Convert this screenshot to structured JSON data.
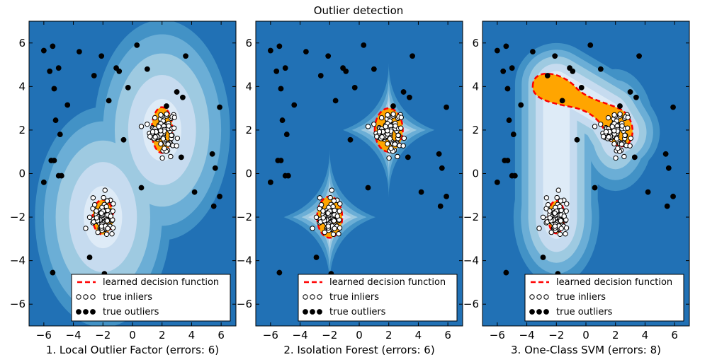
{
  "title": "Outlier detection",
  "colors": {
    "blues": [
      "#08306b",
      "#08519c",
      "#2171b5",
      "#4292c6",
      "#6baed6",
      "#9ecae1",
      "#c6dbef",
      "#deebf7",
      "#f7fbff"
    ],
    "decision_fill": "#ffa500",
    "decision_line": "#ff0000"
  },
  "chart_data": [
    {
      "type": "scatter",
      "xlabel": "1. Local Outlier Factor (errors: 6)",
      "xlim": [
        -7,
        7
      ],
      "ylim": [
        -7,
        7
      ],
      "xticks": [
        -6,
        -4,
        -2,
        0,
        2,
        4,
        6
      ],
      "yticks": [
        6,
        4,
        2,
        0,
        -2,
        -4,
        -6
      ],
      "legend": {
        "position": "lower-right",
        "entries": [
          "learned decision function",
          "true inliers",
          "true outliers"
        ]
      },
      "series": [
        {
          "name": "learned decision function",
          "shape": "blobs",
          "regions": [
            {
              "cx": 2.0,
              "cy": 2.0,
              "rx": 0.7,
              "ry": 1.05
            },
            {
              "cx": -2.0,
              "cy": -2.0,
              "rx": 0.7,
              "ry": 0.8
            }
          ]
        },
        {
          "name": "true inliers",
          "clusters": [
            {
              "cx": 2.0,
              "cy": 2.0,
              "sx": 0.4,
              "sy": 0.45,
              "n": 100
            },
            {
              "cx": -2.0,
              "cy": -2.0,
              "sx": 0.4,
              "sy": 0.4,
              "n": 100
            }
          ]
        },
        {
          "name": "true outliers",
          "points": [
            [
              -6.0,
              5.65
            ],
            [
              -5.4,
              5.85
            ],
            [
              -3.6,
              5.6
            ],
            [
              -2.1,
              5.4
            ],
            [
              0.3,
              5.9
            ],
            [
              3.6,
              5.4
            ],
            [
              -5.6,
              4.7
            ],
            [
              -5.0,
              4.85
            ],
            [
              -2.6,
              4.5
            ],
            [
              -1.1,
              4.85
            ],
            [
              -0.9,
              4.7
            ],
            [
              1.0,
              4.8
            ],
            [
              -5.3,
              3.9
            ],
            [
              -4.4,
              3.15
            ],
            [
              -1.6,
              3.35
            ],
            [
              -0.3,
              3.95
            ],
            [
              3.0,
              3.75
            ],
            [
              3.4,
              3.5
            ],
            [
              2.3,
              3.1
            ],
            [
              5.9,
              3.05
            ],
            [
              -5.2,
              2.45
            ],
            [
              -4.9,
              1.8
            ],
            [
              -0.6,
              1.55
            ],
            [
              5.4,
              0.9
            ],
            [
              3.3,
              0.75
            ],
            [
              -5.3,
              0.6
            ],
            [
              -5.5,
              0.6
            ],
            [
              -5.0,
              -0.1
            ],
            [
              -4.8,
              -0.1
            ],
            [
              5.6,
              0.25
            ],
            [
              -6.0,
              -0.4
            ],
            [
              4.2,
              -0.85
            ],
            [
              0.6,
              -0.65
            ],
            [
              5.9,
              -1.05
            ],
            [
              5.5,
              -1.5
            ],
            [
              -1.9,
              -4.6
            ],
            [
              -5.4,
              -4.55
            ],
            [
              -2.9,
              -3.85
            ]
          ]
        }
      ]
    },
    {
      "type": "scatter",
      "xlabel": "2. Isolation Forest (errors: 6)",
      "xlim": [
        -7,
        7
      ],
      "ylim": [
        -7,
        7
      ],
      "xticks": [
        -6,
        -4,
        -2,
        0,
        2,
        4,
        6
      ],
      "yticks": [
        6,
        4,
        2,
        0,
        -2,
        -4,
        -6
      ],
      "legend": {
        "position": "lower-right",
        "entries": [
          "learned decision function",
          "true inliers",
          "true outliers"
        ]
      },
      "series": [
        {
          "name": "learned decision function",
          "shape": "blobs",
          "regions": [
            {
              "cx": 2.0,
              "cy": 2.0,
              "rx": 0.95,
              "ry": 1.0
            },
            {
              "cx": -2.0,
              "cy": -2.0,
              "rx": 0.85,
              "ry": 0.95
            }
          ]
        },
        {
          "name": "true inliers",
          "clusters": [
            {
              "cx": 2.0,
              "cy": 2.0,
              "sx": 0.4,
              "sy": 0.45,
              "n": 100
            },
            {
              "cx": -2.0,
              "cy": -2.0,
              "sx": 0.4,
              "sy": 0.4,
              "n": 100
            }
          ]
        },
        {
          "name": "true outliers",
          "points": [
            [
              -6.0,
              5.65
            ],
            [
              -5.4,
              5.85
            ],
            [
              -3.6,
              5.6
            ],
            [
              -2.1,
              5.4
            ],
            [
              0.3,
              5.9
            ],
            [
              3.6,
              5.4
            ],
            [
              -5.6,
              4.7
            ],
            [
              -5.0,
              4.85
            ],
            [
              -2.6,
              4.5
            ],
            [
              -1.1,
              4.85
            ],
            [
              -0.9,
              4.7
            ],
            [
              1.0,
              4.8
            ],
            [
              -5.3,
              3.9
            ],
            [
              -4.4,
              3.15
            ],
            [
              -1.6,
              3.35
            ],
            [
              -0.3,
              3.95
            ],
            [
              3.0,
              3.75
            ],
            [
              3.4,
              3.5
            ],
            [
              2.3,
              3.1
            ],
            [
              5.9,
              3.05
            ],
            [
              -5.2,
              2.45
            ],
            [
              -4.9,
              1.8
            ],
            [
              -0.6,
              1.55
            ],
            [
              5.4,
              0.9
            ],
            [
              3.3,
              0.75
            ],
            [
              -5.3,
              0.6
            ],
            [
              -5.5,
              0.6
            ],
            [
              -5.0,
              -0.1
            ],
            [
              -4.8,
              -0.1
            ],
            [
              5.6,
              0.25
            ],
            [
              -6.0,
              -0.4
            ],
            [
              4.2,
              -0.85
            ],
            [
              0.6,
              -0.65
            ],
            [
              5.9,
              -1.05
            ],
            [
              5.5,
              -1.5
            ],
            [
              -1.9,
              -4.6
            ],
            [
              -5.4,
              -4.55
            ],
            [
              -2.9,
              -3.85
            ]
          ]
        }
      ]
    },
    {
      "type": "scatter",
      "xlabel": "3. One-Class SVM (errors: 8)",
      "xlim": [
        -7,
        7
      ],
      "ylim": [
        -7,
        7
      ],
      "xticks": [
        -6,
        -4,
        -2,
        0,
        2,
        4,
        6
      ],
      "yticks": [
        6,
        4,
        2,
        0,
        -2,
        -4,
        -6
      ],
      "legend": {
        "position": "lower-right",
        "entries": [
          "learned decision function",
          "true inliers",
          "true outliers"
        ]
      },
      "series": [
        {
          "name": "learned decision function",
          "shape": "svm",
          "regions": [
            {
              "cx": -2.0,
              "cy": -2.0,
              "rx": 0.55,
              "ry": 0.75
            }
          ]
        },
        {
          "name": "true inliers",
          "clusters": [
            {
              "cx": 2.0,
              "cy": 2.0,
              "sx": 0.4,
              "sy": 0.45,
              "n": 100
            },
            {
              "cx": -2.0,
              "cy": -2.0,
              "sx": 0.4,
              "sy": 0.4,
              "n": 100
            }
          ]
        },
        {
          "name": "true outliers",
          "points": [
            [
              -6.0,
              5.65
            ],
            [
              -5.4,
              5.85
            ],
            [
              -3.6,
              5.6
            ],
            [
              -2.1,
              5.4
            ],
            [
              0.3,
              5.9
            ],
            [
              3.6,
              5.4
            ],
            [
              -5.6,
              4.7
            ],
            [
              -5.0,
              4.85
            ],
            [
              -2.6,
              4.5
            ],
            [
              -1.1,
              4.85
            ],
            [
              -0.9,
              4.7
            ],
            [
              1.0,
              4.8
            ],
            [
              -5.3,
              3.9
            ],
            [
              -4.4,
              3.15
            ],
            [
              -1.6,
              3.35
            ],
            [
              -0.3,
              3.95
            ],
            [
              3.0,
              3.75
            ],
            [
              3.4,
              3.5
            ],
            [
              2.3,
              3.1
            ],
            [
              5.9,
              3.05
            ],
            [
              -5.2,
              2.45
            ],
            [
              -4.9,
              1.8
            ],
            [
              -0.6,
              1.55
            ],
            [
              5.4,
              0.9
            ],
            [
              3.3,
              0.75
            ],
            [
              -5.3,
              0.6
            ],
            [
              -5.5,
              0.6
            ],
            [
              -5.0,
              -0.1
            ],
            [
              -4.8,
              -0.1
            ],
            [
              5.6,
              0.25
            ],
            [
              -6.0,
              -0.4
            ],
            [
              4.2,
              -0.85
            ],
            [
              0.6,
              -0.65
            ],
            [
              5.9,
              -1.05
            ],
            [
              5.5,
              -1.5
            ],
            [
              -1.9,
              -4.6
            ],
            [
              -5.4,
              -4.55
            ],
            [
              -2.9,
              -3.85
            ]
          ]
        }
      ]
    }
  ]
}
